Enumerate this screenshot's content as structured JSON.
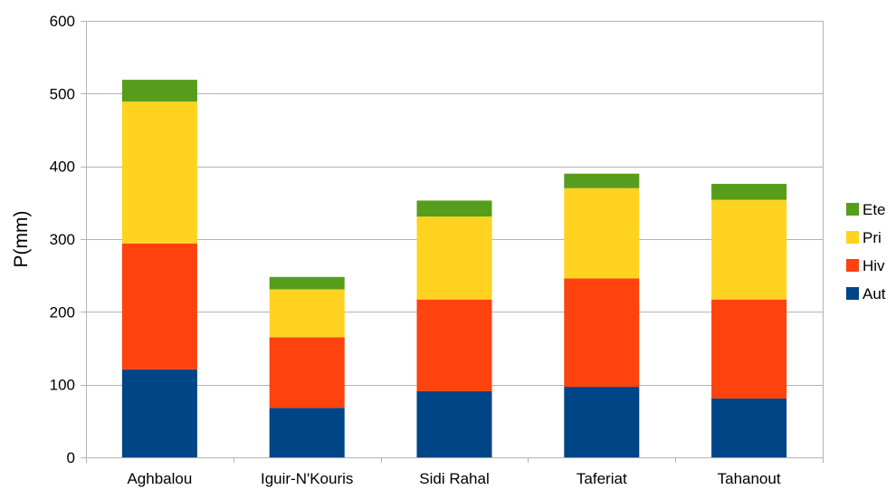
{
  "chart_data": {
    "type": "bar",
    "stacked": true,
    "categories": [
      "Aghbalou",
      "Iguir-N'Kouris",
      "Sidi Rahal",
      "Taferiat",
      "Tahanout"
    ],
    "series": [
      {
        "name": "Aut",
        "color": "#004586",
        "values": [
          121,
          68,
          91,
          97,
          81
        ]
      },
      {
        "name": "Hiv",
        "color": "#ff420e",
        "values": [
          173,
          97,
          126,
          149,
          136
        ]
      },
      {
        "name": "Pri",
        "color": "#ffd320",
        "values": [
          195,
          66,
          114,
          124,
          137
        ]
      },
      {
        "name": "Ete",
        "color": "#579d1c",
        "values": [
          30,
          17,
          22,
          20,
          22
        ]
      }
    ],
    "ylabel": "P(mm)",
    "xlabel": "",
    "ylim": [
      0,
      600
    ],
    "yticks": [
      0,
      100,
      200,
      300,
      400,
      500,
      600
    ],
    "grid": true,
    "legend": {
      "position": "right",
      "order": [
        "Ete",
        "Pri",
        "Hiv",
        "Aut"
      ]
    }
  }
}
